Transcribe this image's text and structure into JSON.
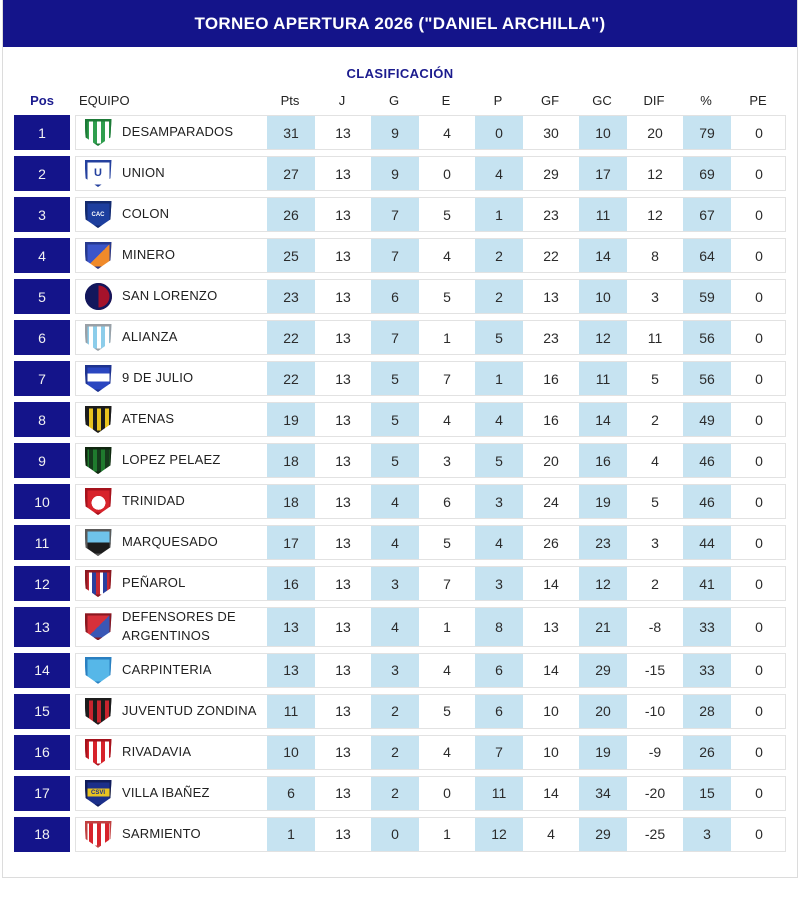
{
  "header": {
    "title": "TORNEO APERTURA 2026 (\"DANIEL ARCHILLA\")"
  },
  "subtitle": "CLASIFICACIÓN",
  "colors": {
    "title_bar_bg": "#14148a",
    "position_badge_bg": "#14148a",
    "highlight_cell_bg": "#c6e3f1",
    "row_border": "#e2e2e2",
    "subtitle_text": "#1b1b8e",
    "title_text": "#ffffff"
  },
  "chart_data": {
    "type": "table",
    "title": "TORNEO APERTURA 2026 (\"DANIEL ARCHILLA\")",
    "subtitle": "CLASIFICACIÓN",
    "columns": [
      "Pos",
      "EQUIPO",
      "Pts",
      "J",
      "G",
      "E",
      "P",
      "GF",
      "GC",
      "DIF",
      "%",
      "PE"
    ],
    "highlight_columns": [
      "Pts",
      "G",
      "P",
      "GC",
      "%"
    ],
    "rows": [
      {
        "pos": 1,
        "team": "DESAMPARADOS",
        "values": [
          31,
          13,
          9,
          4,
          0,
          30,
          10,
          20,
          79,
          0
        ],
        "logo": {
          "icon": "team-crest-desamparados",
          "shape": "shield",
          "pattern": "stripes",
          "colors": [
            "#2f9e4e",
            "#ffffff"
          ],
          "border": "#1d7a37"
        }
      },
      {
        "pos": 2,
        "team": "UNION",
        "values": [
          27,
          13,
          9,
          0,
          4,
          29,
          17,
          12,
          69,
          0
        ],
        "logo": {
          "icon": "team-crest-union",
          "shape": "shield",
          "pattern": "solid",
          "colors": [
            "#ffffff"
          ],
          "border": "#24409e",
          "text": "U",
          "text_color": "#24409e"
        }
      },
      {
        "pos": 3,
        "team": "COLON",
        "values": [
          26,
          13,
          7,
          5,
          1,
          23,
          11,
          12,
          67,
          0
        ],
        "logo": {
          "icon": "team-crest-colon",
          "shape": "shield",
          "pattern": "solid",
          "colors": [
            "#1d3e9e"
          ],
          "border": "#132a6e",
          "text": "CAC",
          "text_color": "#ffffff"
        }
      },
      {
        "pos": 4,
        "team": "MINERO",
        "values": [
          25,
          13,
          7,
          4,
          2,
          22,
          14,
          8,
          64,
          0
        ],
        "logo": {
          "icon": "team-crest-minero",
          "shape": "shield",
          "pattern": "diag",
          "colors": [
            "#3b55c9",
            "#f08a2a"
          ],
          "border": "#26398f"
        }
      },
      {
        "pos": 5,
        "team": "SAN LORENZO",
        "values": [
          23,
          13,
          6,
          5,
          2,
          13,
          10,
          3,
          59,
          0
        ],
        "logo": {
          "icon": "team-crest-san-lorenzo",
          "shape": "circle",
          "pattern": "split-v",
          "colors": [
            "#13175c",
            "#a5122b"
          ],
          "border": "#13175c"
        }
      },
      {
        "pos": 6,
        "team": "ALIANZA",
        "values": [
          22,
          13,
          7,
          1,
          5,
          23,
          12,
          11,
          56,
          0
        ],
        "logo": {
          "icon": "team-crest-alianza",
          "shape": "shield",
          "pattern": "stripes",
          "colors": [
            "#8ccdea",
            "#ffffff"
          ],
          "border": "#9aa0a6"
        }
      },
      {
        "pos": 7,
        "team": "9 DE JULIO",
        "values": [
          22,
          13,
          5,
          7,
          1,
          16,
          11,
          5,
          56,
          0
        ],
        "logo": {
          "icon": "team-crest-9-de-julio",
          "shape": "shield",
          "pattern": "band",
          "colors": [
            "#2a46c0",
            "#ffffff"
          ],
          "border": "#1e338f"
        }
      },
      {
        "pos": 8,
        "team": "ATENAS",
        "values": [
          19,
          13,
          5,
          4,
          4,
          16,
          14,
          2,
          49,
          0
        ],
        "logo": {
          "icon": "team-crest-atenas",
          "shape": "shield",
          "pattern": "stripes",
          "colors": [
            "#1c1c1c",
            "#e8c31e"
          ],
          "border": "#1c1c1c"
        }
      },
      {
        "pos": 9,
        "team": "LOPEZ PELAEZ",
        "values": [
          18,
          13,
          5,
          3,
          5,
          20,
          16,
          4,
          46,
          0
        ],
        "logo": {
          "icon": "team-crest-lopez-pelaez",
          "shape": "shield",
          "pattern": "stripes",
          "colors": [
            "#1f7a2e",
            "#153a1c"
          ],
          "border": "#10260f"
        }
      },
      {
        "pos": 10,
        "team": "TRINIDAD",
        "values": [
          18,
          13,
          4,
          6,
          3,
          24,
          19,
          5,
          46,
          0
        ],
        "logo": {
          "icon": "team-crest-trinidad",
          "shape": "shield",
          "pattern": "dot",
          "colors": [
            "#d7232b",
            "#ffffff"
          ],
          "border": "#a5121c"
        }
      },
      {
        "pos": 11,
        "team": "MARQUESADO",
        "values": [
          17,
          13,
          4,
          5,
          4,
          26,
          23,
          3,
          44,
          0
        ],
        "logo": {
          "icon": "team-crest-marquesado",
          "shape": "shield",
          "pattern": "split-h",
          "colors": [
            "#6fc3ea",
            "#1c1c1c"
          ],
          "border": "#5a5a5a"
        }
      },
      {
        "pos": 12,
        "team": "PEÑAROL",
        "values": [
          16,
          13,
          3,
          7,
          3,
          14,
          12,
          2,
          41,
          0
        ],
        "logo": {
          "icon": "team-crest-penarol",
          "shape": "shield",
          "pattern": "stripes3",
          "colors": [
            "#c62833",
            "#ffffff",
            "#2a3f9e"
          ],
          "border": "#8a1820"
        }
      },
      {
        "pos": 13,
        "team": "DEFENSORES DE ARGENTINOS",
        "values": [
          13,
          13,
          4,
          1,
          8,
          13,
          21,
          -8,
          33,
          0
        ],
        "logo": {
          "icon": "team-crest-defensores",
          "shape": "shield",
          "pattern": "diag",
          "colors": [
            "#d6303a",
            "#3a57b5"
          ],
          "border": "#8a1820"
        }
      },
      {
        "pos": 14,
        "team": "CARPINTERIA",
        "values": [
          13,
          13,
          3,
          4,
          6,
          14,
          29,
          -15,
          33,
          0
        ],
        "logo": {
          "icon": "team-crest-carpinteria",
          "shape": "shield",
          "pattern": "solid",
          "colors": [
            "#56b7e8"
          ],
          "border": "#2a7fc0"
        }
      },
      {
        "pos": 15,
        "team": "JUVENTUD ZONDINA",
        "values": [
          11,
          13,
          2,
          5,
          6,
          10,
          20,
          -10,
          28,
          0
        ],
        "logo": {
          "icon": "team-crest-juventud-zondina",
          "shape": "shield",
          "pattern": "stripes",
          "colors": [
            "#1c1c1c",
            "#c8242e"
          ],
          "border": "#1c1c1c"
        }
      },
      {
        "pos": 16,
        "team": "RIVADAVIA",
        "values": [
          10,
          13,
          2,
          4,
          7,
          10,
          19,
          -9,
          26,
          0
        ],
        "logo": {
          "icon": "team-crest-rivadavia",
          "shape": "shield",
          "pattern": "stripes",
          "colors": [
            "#d7232b",
            "#ffffff"
          ],
          "border": "#a5121c"
        }
      },
      {
        "pos": 17,
        "team": "VILLA IBAÑEZ",
        "values": [
          6,
          13,
          2,
          0,
          11,
          14,
          34,
          -20,
          15,
          0
        ],
        "logo": {
          "icon": "team-crest-villa-ibanez",
          "shape": "shield",
          "pattern": "band",
          "colors": [
            "#1b2f8a",
            "#e8c321"
          ],
          "border": "#101c5a",
          "text": "CSVI",
          "text_color": "#1b2f8a"
        }
      },
      {
        "pos": 18,
        "team": "SARMIENTO",
        "values": [
          1,
          13,
          0,
          1,
          12,
          4,
          29,
          -25,
          3,
          0
        ],
        "logo": {
          "icon": "team-crest-sarmiento",
          "shape": "shield",
          "pattern": "stripes",
          "colors": [
            "#ffffff",
            "#d7232b"
          ],
          "border": "#c04040"
        }
      }
    ]
  }
}
